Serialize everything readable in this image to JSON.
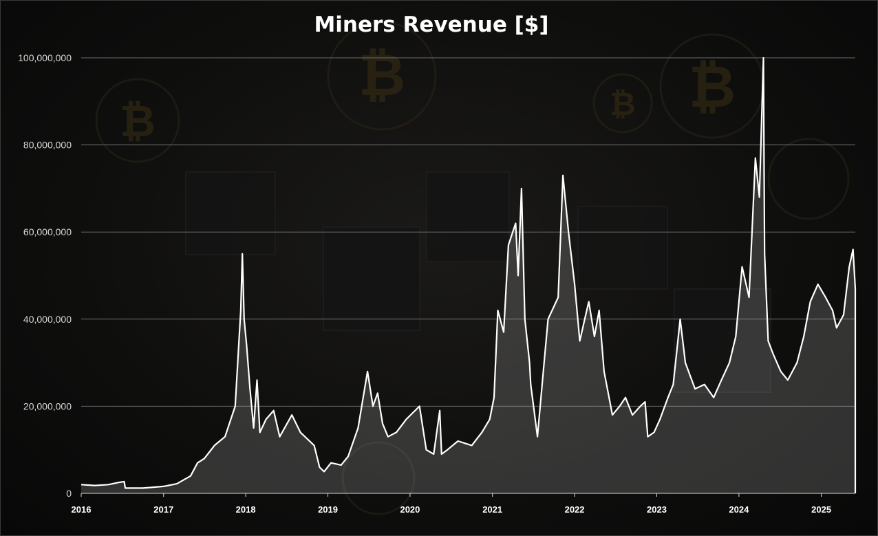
{
  "chart_data": {
    "type": "area",
    "title": "Miners Revenue [$]",
    "xlabel": "",
    "ylabel": "",
    "xlim": [
      "2016-01-01",
      "2025-06-01"
    ],
    "ylim": [
      0,
      100000000
    ],
    "y_ticks": [
      "0",
      "20,000,000",
      "40,000,000",
      "60,000,000",
      "80,000,000",
      "100,000,000"
    ],
    "x_ticks": [
      "2016",
      "2017",
      "2018",
      "2019",
      "2020",
      "2021",
      "2022",
      "2023",
      "2024",
      "2025"
    ],
    "grid": "horizontal",
    "line_color": "#ffffff",
    "fill_color": "#bebebe",
    "series": [
      {
        "x": [
          "2016-01-01",
          "2016-03-01",
          "2016-05-01",
          "2016-06-15",
          "2016-07-10",
          "2016-07-15",
          "2016-10-01",
          "2017-01-01",
          "2017-03-01",
          "2017-05-01",
          "2017-06-01",
          "2017-07-01",
          "2017-08-15",
          "2017-10-01",
          "2017-11-15",
          "2017-12-10",
          "2017-12-17",
          "2017-12-25",
          "2018-01-05",
          "2018-01-20",
          "2018-02-05",
          "2018-02-20",
          "2018-03-05",
          "2018-04-01",
          "2018-05-05",
          "2018-06-01",
          "2018-07-25",
          "2018-09-01",
          "2018-11-01",
          "2018-11-25",
          "2018-12-15",
          "2019-01-15",
          "2019-03-01",
          "2019-04-01",
          "2019-05-15",
          "2019-06-26",
          "2019-07-20",
          "2019-08-10",
          "2019-09-01",
          "2019-09-25",
          "2019-11-01",
          "2019-12-15",
          "2020-02-12",
          "2020-03-13",
          "2020-04-15",
          "2020-05-12",
          "2020-05-20",
          "2020-06-15",
          "2020-08-01",
          "2020-10-01",
          "2020-11-15",
          "2020-12-20",
          "2021-01-08",
          "2021-01-25",
          "2021-02-20",
          "2021-03-13",
          "2021-04-14",
          "2021-04-25",
          "2021-05-10",
          "2021-05-25",
          "2021-06-15",
          "2021-06-20",
          "2021-07-20",
          "2021-08-15",
          "2021-09-05",
          "2021-10-20",
          "2021-11-10",
          "2021-12-05",
          "2022-01-01",
          "2022-01-24",
          "2022-02-15",
          "2022-03-05",
          "2022-03-30",
          "2022-04-20",
          "2022-05-12",
          "2022-06-18",
          "2022-07-20",
          "2022-08-15",
          "2022-09-15",
          "2022-10-20",
          "2022-11-10",
          "2022-11-22",
          "2022-12-20",
          "2023-01-15",
          "2023-02-20",
          "2023-03-15",
          "2023-04-15",
          "2023-05-08",
          "2023-06-20",
          "2023-08-01",
          "2023-09-11",
          "2023-10-15",
          "2023-11-20",
          "2023-12-18",
          "2024-01-15",
          "2024-02-15",
          "2024-03-14",
          "2024-04-01",
          "2024-04-19",
          "2024-04-24",
          "2024-05-10",
          "2024-06-01",
          "2024-07-05",
          "2024-08-05",
          "2024-09-15",
          "2024-10-15",
          "2024-11-13",
          "2024-12-17",
          "2025-01-20",
          "2025-02-20",
          "2025-03-10",
          "2025-04-10",
          "2025-05-05",
          "2025-05-22",
          "2025-06-01"
        ],
        "values": [
          2000000,
          1800000,
          2000000,
          2500000,
          2700000,
          1200000,
          1200000,
          1600000,
          2200000,
          4000000,
          7000000,
          8000000,
          11000000,
          13000000,
          20000000,
          42000000,
          55000000,
          40000000,
          34000000,
          24000000,
          15000000,
          26000000,
          14000000,
          17000000,
          19000000,
          13000000,
          18000000,
          14000000,
          11000000,
          6000000,
          5000000,
          7000000,
          6500000,
          8500000,
          15000000,
          28000000,
          20000000,
          23000000,
          16000000,
          13000000,
          14000000,
          17000000,
          20000000,
          10000000,
          9000000,
          19000000,
          9000000,
          10000000,
          12000000,
          11000000,
          14000000,
          17000000,
          22000000,
          42000000,
          37000000,
          57000000,
          62000000,
          50000000,
          70000000,
          40000000,
          30000000,
          25000000,
          13000000,
          28000000,
          40000000,
          45000000,
          73000000,
          60000000,
          48000000,
          35000000,
          40000000,
          44000000,
          36000000,
          42000000,
          28000000,
          18000000,
          20000000,
          22000000,
          18000000,
          20000000,
          21000000,
          13000000,
          14000000,
          17000000,
          22000000,
          25000000,
          40000000,
          30000000,
          24000000,
          25000000,
          22000000,
          26000000,
          30000000,
          36000000,
          52000000,
          45000000,
          77000000,
          68000000,
          100000000,
          55000000,
          35000000,
          32000000,
          28000000,
          26000000,
          30000000,
          36000000,
          44000000,
          48000000,
          45000000,
          42000000,
          38000000,
          41000000,
          52000000,
          56000000,
          47000000
        ]
      }
    ]
  }
}
